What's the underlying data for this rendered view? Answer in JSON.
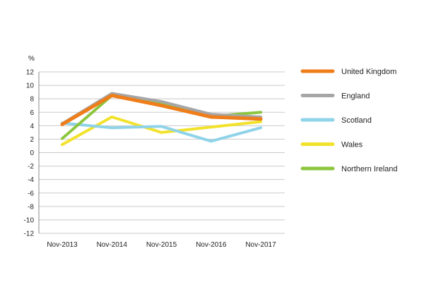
{
  "chart_data": {
    "type": "line",
    "ylabel": "%",
    "x": [
      "Nov-2013",
      "Nov-2014",
      "Nov-2015",
      "Nov-2016",
      "Nov-2017"
    ],
    "ylim": [
      -12,
      12
    ],
    "yticks": [
      12,
      10,
      8,
      6,
      4,
      2,
      0,
      -2,
      -4,
      -6,
      -8,
      -10,
      -12
    ],
    "grid": true,
    "legend_position": "right",
    "series": [
      {
        "name": "Wales",
        "color": "#f2e22c",
        "values": [
          1.2,
          5.3,
          3.0,
          3.8,
          4.6
        ]
      },
      {
        "name": "Scotland",
        "color": "#8fd3e8",
        "values": [
          4.4,
          3.7,
          3.9,
          1.7,
          3.7
        ]
      },
      {
        "name": "Northern Ireland",
        "color": "#8cc63f",
        "values": [
          2.1,
          8.5,
          7.4,
          5.4,
          6.0
        ]
      },
      {
        "name": "England",
        "color": "#a6a6a6",
        "values": [
          4.3,
          8.8,
          7.6,
          5.7,
          5.3
        ]
      },
      {
        "name": "United Kingdom",
        "color": "#ee7d1a",
        "values": [
          4.2,
          8.5,
          7.0,
          5.3,
          5.0
        ]
      }
    ],
    "legend_order": [
      "United Kingdom",
      "England",
      "Scotland",
      "Wales",
      "Northern Ireland"
    ]
  }
}
